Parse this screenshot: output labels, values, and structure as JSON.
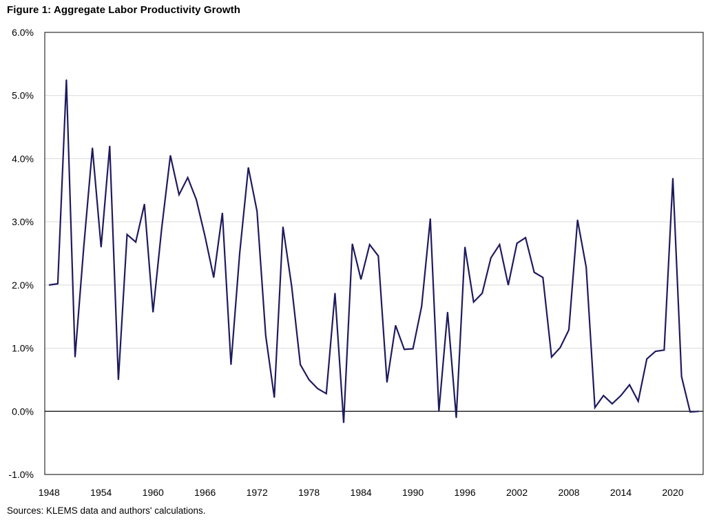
{
  "title": "Figure 1: Aggregate Labor Productivity Growth",
  "source": "Sources: KLEMS data and authors' calculations.",
  "chart_data": {
    "type": "line",
    "title": "Figure 1: Aggregate Labor Productivity Growth",
    "xlabel": "",
    "ylabel": "",
    "ylim": [
      -1.0,
      6.0
    ],
    "y_ticks": [
      "-1.0%",
      "0.0%",
      "1.0%",
      "2.0%",
      "3.0%",
      "4.0%",
      "5.0%",
      "6.0%"
    ],
    "y_tick_values": [
      -1.0,
      0.0,
      1.0,
      2.0,
      3.0,
      4.0,
      5.0,
      6.0
    ],
    "x_ticks": [
      "1948",
      "1954",
      "1960",
      "1966",
      "1972",
      "1978",
      "1984",
      "1990",
      "1996",
      "2002",
      "2008",
      "2014",
      "2020"
    ],
    "x_tick_values": [
      1948,
      1954,
      1960,
      1966,
      1972,
      1978,
      1984,
      1990,
      1996,
      2002,
      2008,
      2014,
      2020
    ],
    "xlim": [
      1947.5,
      2023.5
    ],
    "grid": "horizontal",
    "line_color": "#1f1a5e",
    "series": [
      {
        "x": [
          1948,
          1949,
          1950,
          1951,
          1952,
          1953,
          1954,
          1955,
          1956,
          1957,
          1958,
          1959,
          1960,
          1961,
          1962,
          1963,
          1964,
          1965,
          1966,
          1967,
          1968,
          1969,
          1970,
          1971,
          1972,
          1973,
          1974,
          1975,
          1976,
          1977,
          1978,
          1979,
          1980,
          1981,
          1982,
          1983,
          1984,
          1985,
          1986,
          1987,
          1988,
          1989,
          1990,
          1991,
          1992,
          1993,
          1994,
          1995,
          1996,
          1997,
          1998,
          1999,
          2000,
          2001,
          2002,
          2003,
          2004,
          2005,
          2006,
          2007,
          2008,
          2009,
          2010,
          2011,
          2012,
          2013,
          2014,
          2015,
          2016,
          2017,
          2018,
          2019,
          2020,
          2021,
          2022,
          2023
        ],
        "values": [
          2.0,
          2.02,
          5.25,
          0.86,
          2.6,
          4.17,
          2.6,
          4.2,
          0.5,
          2.8,
          2.68,
          3.28,
          1.57,
          2.9,
          4.05,
          3.43,
          3.7,
          3.35,
          2.77,
          2.12,
          3.14,
          0.74,
          2.5,
          3.86,
          3.17,
          1.2,
          0.22,
          2.92,
          1.98,
          0.74,
          0.5,
          0.36,
          0.28,
          1.87,
          -0.18,
          2.65,
          2.09,
          2.64,
          2.46,
          0.46,
          1.36,
          0.98,
          0.99,
          1.66,
          3.05,
          0.0,
          1.57,
          -0.1,
          2.6,
          1.73,
          1.87,
          2.43,
          2.64,
          2.0,
          2.66,
          2.75,
          2.2,
          2.12,
          0.86,
          1.01,
          1.29,
          3.03,
          2.28,
          0.06,
          0.25,
          0.12,
          0.25,
          0.42,
          0.16,
          0.83,
          0.95,
          0.97,
          3.69,
          0.55,
          -0.01,
          0.0
        ]
      }
    ]
  }
}
